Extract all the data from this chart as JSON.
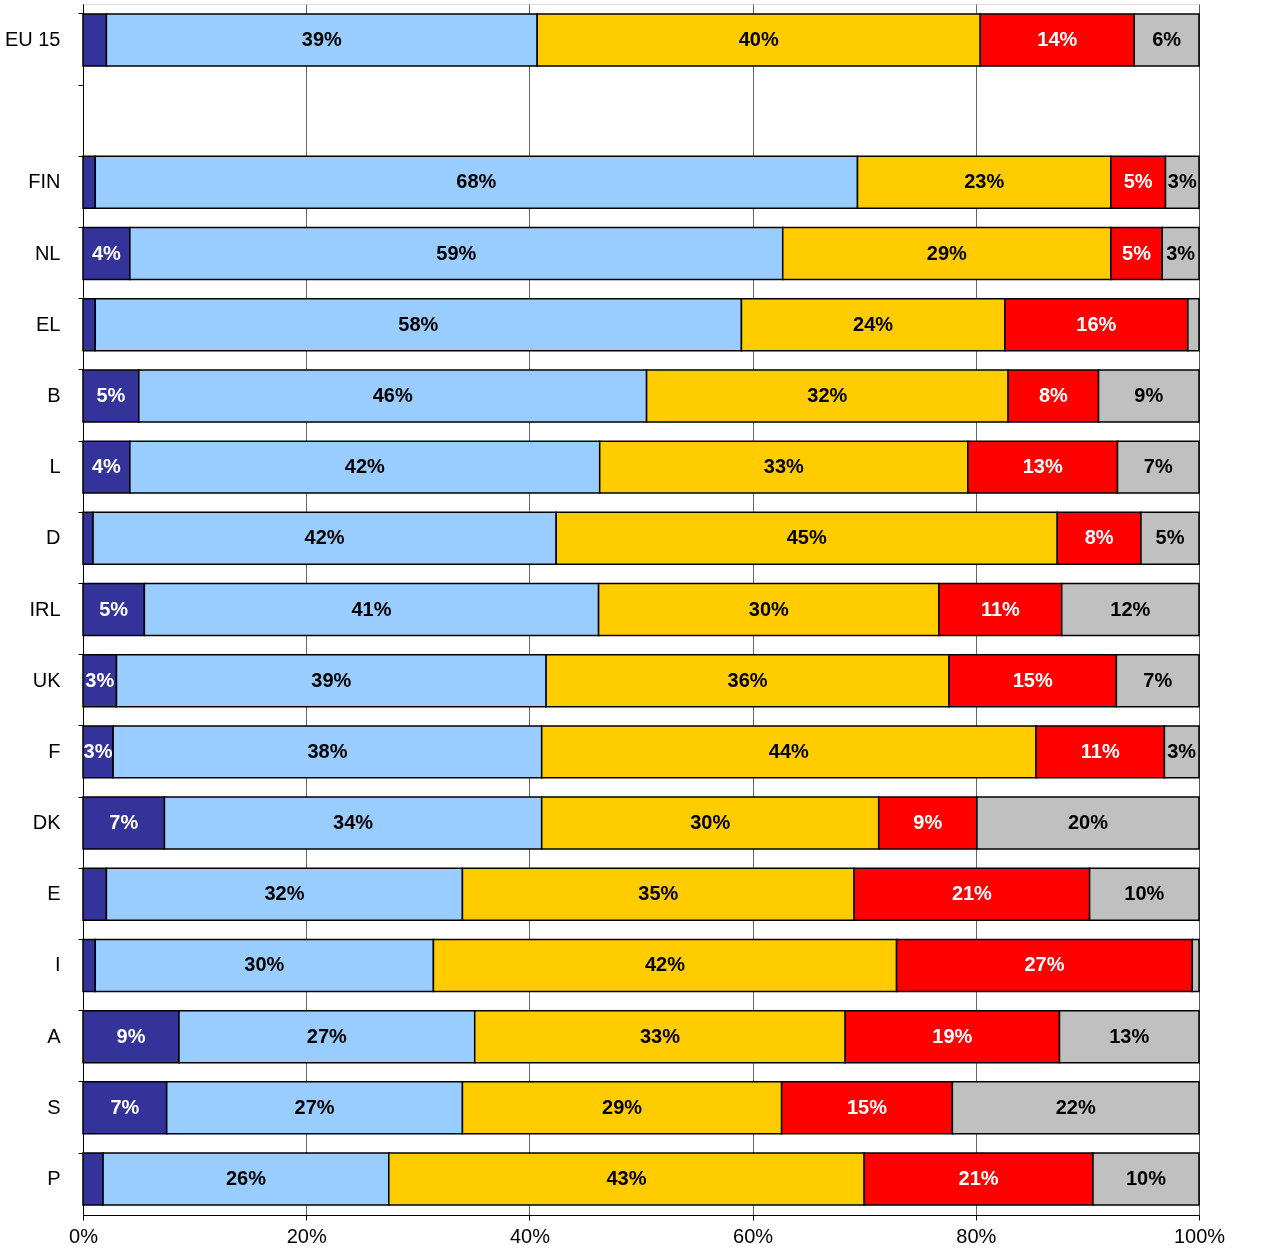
{
  "chart_data": {
    "type": "bar",
    "orientation": "horizontal",
    "stacked": true,
    "categories": [
      "EU 15",
      null,
      "FIN",
      "NL",
      "EL",
      "B",
      "L",
      "D",
      "IRL",
      "UK",
      "F",
      "DK",
      "E",
      "I",
      "A",
      "S",
      "P"
    ],
    "series": [
      {
        "color": "#333399",
        "values": [
          2.1,
          null,
          1.1,
          4.2,
          1.1,
          5.0,
          4.2,
          0.9,
          5.5,
          3.0,
          2.7,
          7.3,
          2.1,
          1.1,
          8.6,
          7.5,
          1.8
        ],
        "value_labels": [
          null,
          null,
          null,
          "4%",
          null,
          "5%",
          "4%",
          null,
          "5%",
          "3%",
          "3%",
          "7%",
          null,
          null,
          "9%",
          "7%",
          null
        ]
      },
      {
        "color": "#99ccff",
        "values": [
          38.6,
          null,
          68.3,
          58.5,
          57.9,
          45.5,
          42.1,
          41.5,
          40.7,
          38.5,
          38.4,
          33.8,
          31.9,
          30.3,
          26.5,
          26.5,
          25.6
        ],
        "value_labels": [
          "39%",
          null,
          "68%",
          "59%",
          "58%",
          "46%",
          "42%",
          "42%",
          "41%",
          "39%",
          "38%",
          "34%",
          "32%",
          "30%",
          "27%",
          "27%",
          "26%"
        ]
      },
      {
        "color": "#ffcc00",
        "values": [
          39.7,
          null,
          22.7,
          29.4,
          23.6,
          32.4,
          33.0,
          44.9,
          30.5,
          36.1,
          44.3,
          30.2,
          35.1,
          41.5,
          33.2,
          28.6,
          42.6
        ],
        "value_labels": [
          "40%",
          null,
          "23%",
          "29%",
          "24%",
          "32%",
          "33%",
          "45%",
          "30%",
          "36%",
          "44%",
          "30%",
          "35%",
          "42%",
          "33%",
          "29%",
          "43%"
        ]
      },
      {
        "color": "#ff0000",
        "values": [
          13.8,
          null,
          4.9,
          4.6,
          16.4,
          8.1,
          13.4,
          7.5,
          11.0,
          15.0,
          11.5,
          8.8,
          21.1,
          26.5,
          19.2,
          15.3,
          20.5
        ],
        "value_labels": [
          "14%",
          null,
          "5%",
          "5%",
          "16%",
          "8%",
          "13%",
          "8%",
          "11%",
          "15%",
          "11%",
          "9%",
          "21%",
          "27%",
          "19%",
          "15%",
          "21%"
        ]
      },
      {
        "color": "#c0c0c0",
        "values": [
          5.8,
          null,
          3.0,
          3.3,
          1.0,
          9.0,
          7.3,
          5.2,
          12.3,
          7.4,
          3.1,
          19.9,
          9.8,
          0.6,
          12.5,
          22.1,
          9.5
        ],
        "value_labels": [
          "6%",
          null,
          "3%",
          "3%",
          null,
          "9%",
          "7%",
          "5%",
          "12%",
          "7%",
          "3%",
          "20%",
          "10%",
          null,
          "13%",
          "22%",
          "10%"
        ]
      }
    ],
    "xlim": [
      0,
      100
    ],
    "xticks": [
      {
        "value": 0,
        "label": "0%"
      },
      {
        "value": 20,
        "label": "20%"
      },
      {
        "value": 40,
        "label": "40%"
      },
      {
        "value": 60,
        "label": "60%"
      },
      {
        "value": 80,
        "label": "80%"
      },
      {
        "value": 100,
        "label": "100%"
      }
    ],
    "grid": "x",
    "legend": false
  }
}
